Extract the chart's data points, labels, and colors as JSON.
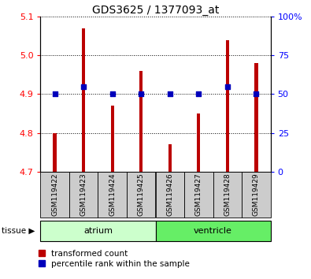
{
  "title": "GDS3625 / 1377093_at",
  "samples": [
    "GSM119422",
    "GSM119423",
    "GSM119424",
    "GSM119425",
    "GSM119426",
    "GSM119427",
    "GSM119428",
    "GSM119429"
  ],
  "transformed_count": [
    4.8,
    5.07,
    4.87,
    4.96,
    4.77,
    4.85,
    5.04,
    4.98
  ],
  "percentile_rank_raw": [
    50,
    55,
    50,
    50,
    50,
    50,
    55,
    50
  ],
  "ylim_left": [
    4.7,
    5.1
  ],
  "ylim_right": [
    0,
    100
  ],
  "yticks_left": [
    4.7,
    4.8,
    4.9,
    5.0,
    5.1
  ],
  "yticks_right": [
    0,
    25,
    50,
    75,
    100
  ],
  "bar_color": "#bb0000",
  "dot_color": "#0000bb",
  "bar_width": 0.12,
  "atrium_label": "atrium",
  "ventricle_label": "ventricle",
  "tissue_label": "tissue",
  "legend_bar_label": "transformed count",
  "legend_dot_label": "percentile rank within the sample",
  "atrium_color": "#ccffcc",
  "ventricle_color": "#66ee66",
  "sample_box_color": "#cccccc",
  "baseline": 4.7,
  "bg_color": "#ffffff"
}
